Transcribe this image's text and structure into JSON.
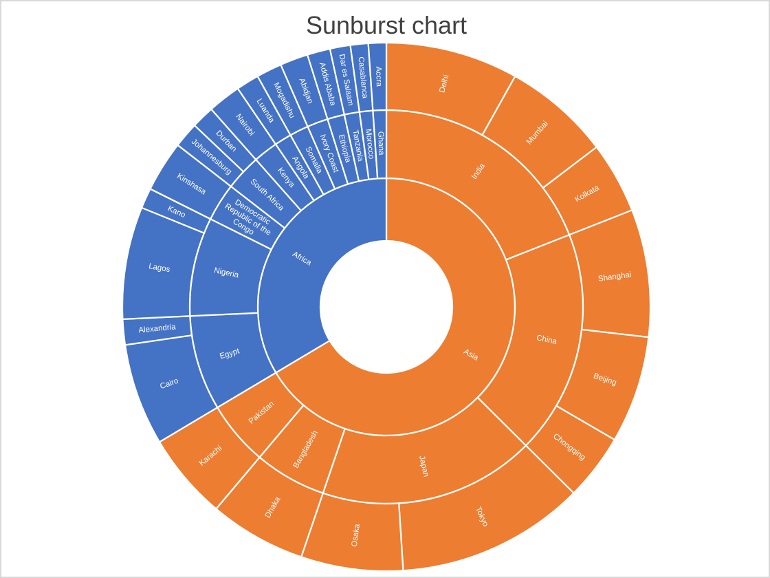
{
  "title": "Sunburst chart",
  "colors": {
    "asia_orange": "#ED7D31",
    "africa_blue": "#4472C4",
    "label_text": "#FFFFFF",
    "title_text": "#404040",
    "frame_border": "#D9D9D9",
    "background": "#FFFFFF"
  },
  "chart_data": {
    "type": "sunburst",
    "title": "Sunburst chart",
    "rings": [
      "region",
      "country",
      "city"
    ],
    "start_angle_deg": 0,
    "direction": "clockwise",
    "legend": "none",
    "regions": [
      {
        "name": "Asia",
        "color": "#ED7D31",
        "countries": [
          {
            "name": "India",
            "cities": [
              {
                "name": "Delhi",
                "value": 26
              },
              {
                "name": "Mumbai",
                "value": 21
              },
              {
                "name": "Kolkata",
                "value": 14
              }
            ]
          },
          {
            "name": "China",
            "cities": [
              {
                "name": "Shanghai",
                "value": 25
              },
              {
                "name": "Beijing",
                "value": 21
              },
              {
                "name": "Chongqing",
                "value": 13
              }
            ]
          },
          {
            "name": "Japan",
            "cities": [
              {
                "name": "Tokyo",
                "value": 37
              },
              {
                "name": "Osaka",
                "value": 20
              }
            ]
          },
          {
            "name": "Bangladesh",
            "cities": [
              {
                "name": "Dhaka",
                "value": 19
              }
            ]
          },
          {
            "name": "Pakistan",
            "cities": [
              {
                "name": "Karachi",
                "value": 17
              }
            ]
          }
        ]
      },
      {
        "name": "Africa",
        "color": "#4472C4",
        "countries": [
          {
            "name": "Egypt",
            "cities": [
              {
                "name": "Cairo",
                "value": 20
              },
              {
                "name": "Alexandria",
                "value": 5
              }
            ]
          },
          {
            "name": "Nigeria",
            "cities": [
              {
                "name": "Lagos",
                "value": 22
              },
              {
                "name": "Kano",
                "value": 4
              }
            ]
          },
          {
            "name": "Democratic Republic of the Congo",
            "label_lines": [
              "Democratic",
              "Republic of the",
              "Congo"
            ],
            "cities": [
              {
                "name": "Kinshasa",
                "value": 10
              }
            ]
          },
          {
            "name": "South Africa",
            "cities": [
              {
                "name": "Johannesburg",
                "value": 5
              },
              {
                "name": "Durban",
                "value": 4.5
              }
            ]
          },
          {
            "name": "Kenya",
            "cities": [
              {
                "name": "Nairobi",
                "value": 6.5
              }
            ]
          },
          {
            "name": "Angola",
            "cities": [
              {
                "name": "Luanda",
                "value": 4.5
              }
            ]
          },
          {
            "name": "Somalia",
            "cities": [
              {
                "name": "Mogadishu",
                "value": 5
              }
            ]
          },
          {
            "name": "Ivory Coast",
            "cities": [
              {
                "name": "Abidjan",
                "value": 5.5
              }
            ]
          },
          {
            "name": "Ethiopia",
            "cities": [
              {
                "name": "Addis Ababa",
                "value": 4.5
              }
            ]
          },
          {
            "name": "Tanzania",
            "cities": [
              {
                "name": "Dar es Salaam",
                "value": 4
              }
            ]
          },
          {
            "name": "Morocco",
            "cities": [
              {
                "name": "Casablanca",
                "value": 3.5
              }
            ]
          },
          {
            "name": "Ghana",
            "cities": [
              {
                "name": "Accra",
                "value": 3.5
              }
            ]
          }
        ]
      }
    ]
  }
}
